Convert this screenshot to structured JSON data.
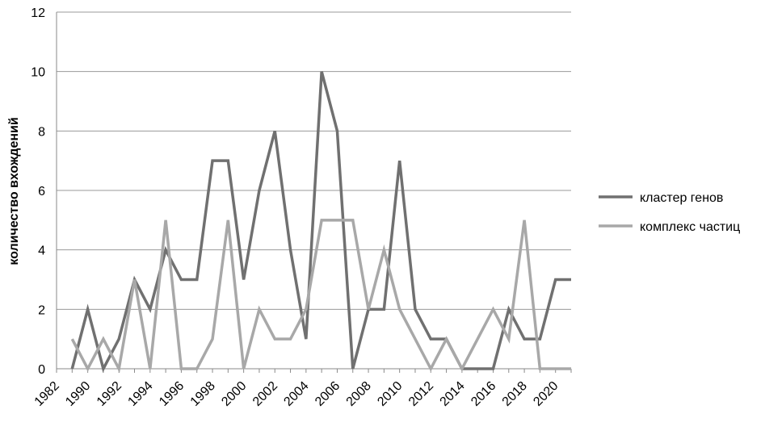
{
  "chart_data": {
    "type": "line",
    "ylabel": "количество вхождений",
    "xlabel": "",
    "ylim": [
      0,
      12
    ],
    "yticks": [
      0,
      2,
      4,
      6,
      8,
      10,
      12
    ],
    "xtick_labels": [
      "1982",
      "1990",
      "1992",
      "1994",
      "1996",
      "1998",
      "2000",
      "2002",
      "2004",
      "2006",
      "2008",
      "2010",
      "2012",
      "2014",
      "2016",
      "2018",
      "2020"
    ],
    "categories": [
      "1982",
      "1989",
      "1990",
      "1991",
      "1992",
      "1993",
      "1994",
      "1995",
      "1996",
      "1997",
      "1998",
      "1999",
      "2000",
      "2001",
      "2002",
      "2003",
      "2004",
      "2005",
      "2006",
      "2007",
      "2008",
      "2009",
      "2010",
      "2011",
      "2012",
      "2013",
      "2014",
      "2015",
      "2016",
      "2017",
      "2018",
      "2019",
      "2020",
      "2021"
    ],
    "grid": true,
    "legend_position": "right",
    "series": [
      {
        "name": "кластер генов",
        "color": "#707070",
        "values": [
          null,
          0,
          2,
          0,
          1,
          3,
          2,
          4,
          3,
          3,
          7,
          7,
          3,
          6,
          8,
          4,
          1,
          10,
          8,
          0,
          2,
          2,
          7,
          2,
          1,
          1,
          0,
          0,
          0,
          2,
          1,
          1,
          3,
          3
        ]
      },
      {
        "name": "комплекс частиц",
        "color": "#a8a8a8",
        "values": [
          null,
          1,
          0,
          1,
          0,
          3,
          0,
          5,
          0,
          0,
          1,
          5,
          0,
          2,
          1,
          1,
          2,
          5,
          5,
          5,
          2,
          4,
          2,
          1,
          0,
          1,
          0,
          1,
          2,
          1,
          5,
          0,
          0,
          0
        ]
      }
    ]
  }
}
